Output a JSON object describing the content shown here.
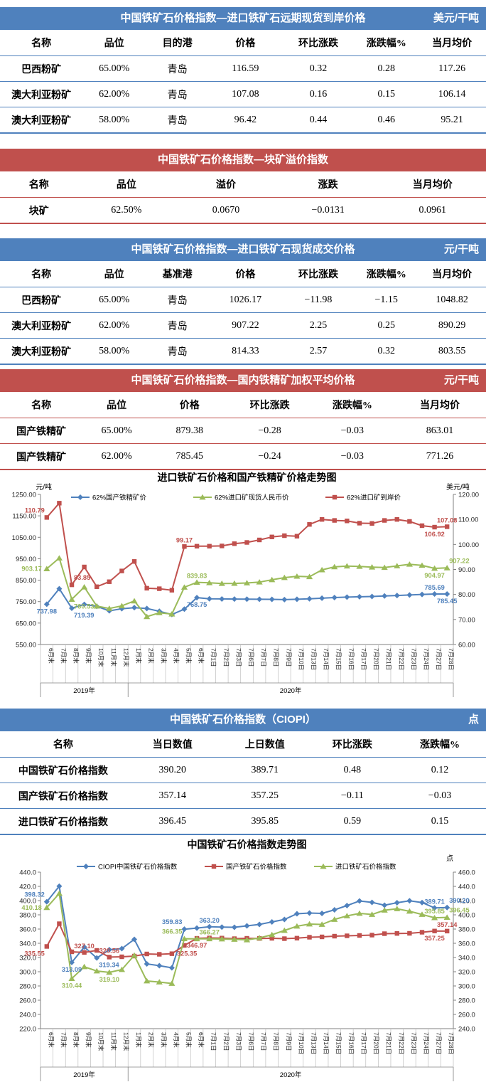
{
  "tables": {
    "t1": {
      "title": "中国铁矿石价格指数—进口铁矿石远期现货到岸价格",
      "unit": "美元/干吨",
      "columns": [
        "名称",
        "品位",
        "目的港",
        "价格",
        "环比涨跌",
        "涨跌幅%",
        "当月均价"
      ],
      "rows": [
        [
          "巴西粉矿",
          "65.00%",
          "青岛",
          "116.59",
          "0.32",
          "0.28",
          "117.26"
        ],
        [
          "澳大利亚粉矿",
          "62.00%",
          "青岛",
          "107.08",
          "0.16",
          "0.15",
          "106.14"
        ],
        [
          "澳大利亚粉矿",
          "58.00%",
          "青岛",
          "96.42",
          "0.44",
          "0.46",
          "95.21"
        ]
      ]
    },
    "t2": {
      "title": "中国铁矿石价格指数—块矿溢价指数",
      "unit": "",
      "columns": [
        "名称",
        "品位",
        "溢价",
        "涨跌",
        "当月均价"
      ],
      "rows": [
        [
          "块矿",
          "62.50%",
          "0.0670",
          "−0.0131",
          "0.0961"
        ]
      ]
    },
    "t3": {
      "title": "中国铁矿石价格指数—进口铁矿石现货成交价格",
      "unit": "元/干吨",
      "columns": [
        "名称",
        "品位",
        "基准港",
        "价格",
        "环比涨跌",
        "涨跌幅%",
        "当月均价"
      ],
      "rows": [
        [
          "巴西粉矿",
          "65.00%",
          "青岛",
          "1026.17",
          "−11.98",
          "−1.15",
          "1048.82"
        ],
        [
          "澳大利亚粉矿",
          "62.00%",
          "青岛",
          "907.22",
          "2.25",
          "0.25",
          "890.29"
        ],
        [
          "澳大利亚粉矿",
          "58.00%",
          "青岛",
          "814.33",
          "2.57",
          "0.32",
          "803.55"
        ]
      ]
    },
    "t4": {
      "title": "中国铁矿石价格指数—国内铁精矿加权平均价格",
      "unit": "元/干吨",
      "columns": [
        "名称",
        "品位",
        "价格",
        "环比涨跌",
        "涨跌幅%",
        "当月均价"
      ],
      "rows": [
        [
          "国产铁精矿",
          "65.00%",
          "879.38",
          "−0.28",
          "−0.03",
          "863.01"
        ],
        [
          "国产铁精矿",
          "62.00%",
          "785.45",
          "−0.24",
          "−0.03",
          "771.26"
        ]
      ]
    },
    "t5": {
      "title": "中国铁矿石价格指数（CIOPI）",
      "unit": "点",
      "columns": [
        "名称",
        "当日数值",
        "上日数值",
        "环比涨跌",
        "涨跌幅%"
      ],
      "rows": [
        [
          "中国铁矿石价格指数",
          "390.20",
          "389.71",
          "0.48",
          "0.12"
        ],
        [
          "国产铁矿石价格指数",
          "357.14",
          "357.25",
          "−0.11",
          "−0.03"
        ],
        [
          "进口铁矿石价格指数",
          "396.45",
          "395.85",
          "0.59",
          "0.15"
        ]
      ]
    }
  },
  "chart_data": [
    {
      "type": "line",
      "title": "进口铁矿石价格和国产铁精矿价格走势图",
      "left_axis": {
        "label": "元/吨",
        "min": 550,
        "max": 1250,
        "step": 100,
        "decimals": 2
      },
      "right_axis": {
        "label": "美元/吨",
        "min": 60,
        "max": 120,
        "step": 10,
        "decimals": 2
      },
      "categories": [
        "6月末",
        "7月末",
        "8月末",
        "9月末",
        "10月末",
        "11月末",
        "12月末",
        "1月末",
        "2月末",
        "3月末",
        "4月末",
        "5月末",
        "6月末",
        "7月1日",
        "7月2日",
        "7月3日",
        "7月6日",
        "7月7日",
        "7月8日",
        "7月9日",
        "7月10日",
        "7月13日",
        "7月14日",
        "7月15日",
        "7月16日",
        "7月17日",
        "7月20日",
        "7月21日",
        "7月22日",
        "7月23日",
        "7月24日",
        "7月27日",
        "7月28日"
      ],
      "year_groups": [
        {
          "label": "2019年",
          "span": 7
        },
        {
          "label": "2020年",
          "span": 26
        }
      ],
      "legend_position": "top",
      "grid": false,
      "series": [
        {
          "name": "62%国产铁精矿价",
          "color": "#4f81bd",
          "marker": "diamond",
          "axis": "left",
          "values": [
            737.98,
            810,
            719.39,
            737,
            728,
            707,
            717,
            722,
            718,
            705,
            690,
            715,
            768.75,
            763,
            762.5,
            762,
            761.5,
            761,
            760.5,
            759.5,
            761,
            763,
            766,
            769,
            771,
            772.5,
            774,
            776.5,
            778.5,
            781,
            783.5,
            785.69,
            785.45
          ]
        },
        {
          "name": "62%进口矿现货人民币价",
          "color": "#9bbb59",
          "marker": "triangle",
          "axis": "left",
          "values": [
            903.17,
            953,
            760.53,
            818,
            729,
            718,
            730,
            753,
            680,
            698,
            692,
            817,
            839.83,
            838,
            834.5,
            835,
            837,
            841,
            852,
            862,
            868,
            866,
            898,
            912,
            916,
            914,
            911,
            909,
            916.5,
            924,
            919,
            904.97,
            907.22
          ]
        },
        {
          "name": "62%进口矿到岸价",
          "color": "#c0504d",
          "marker": "square",
          "axis": "right",
          "values": [
            110.79,
            116.5,
            83.85,
            91,
            83.1,
            85.1,
            89.4,
            93.2,
            82.5,
            82.3,
            81.7,
            99.17,
            99.3,
            99.3,
            99.4,
            100.3,
            100.8,
            101.8,
            103,
            103.5,
            103.3,
            108,
            110,
            109.6,
            109.4,
            108.5,
            108.4,
            109.6,
            110,
            109.2,
            107.5,
            106.92,
            107.08
          ]
        }
      ],
      "annotations": [
        {
          "series": 0,
          "index": 0,
          "text": "737.98",
          "placement": "b"
        },
        {
          "series": 0,
          "index": 2,
          "text": "719.39",
          "placement": "br"
        },
        {
          "series": 0,
          "index": 12,
          "text": "768.75",
          "placement": "b"
        },
        {
          "series": 0,
          "index": 31,
          "text": "785.69",
          "placement": "a"
        },
        {
          "series": 0,
          "index": 32,
          "text": "785.45",
          "placement": "b"
        },
        {
          "series": 1,
          "index": 0,
          "text": "903.17",
          "placement": "l"
        },
        {
          "series": 1,
          "index": 2,
          "text": "760.53",
          "placement": "br"
        },
        {
          "series": 1,
          "index": 12,
          "text": "839.83",
          "placement": "a"
        },
        {
          "series": 1,
          "index": 31,
          "text": "904.97",
          "placement": "b"
        },
        {
          "series": 1,
          "index": 32,
          "text": "907.22",
          "placement": "ar"
        },
        {
          "series": 2,
          "index": 0,
          "text": "110.79",
          "placement": "al"
        },
        {
          "series": 2,
          "index": 2,
          "text": "83.85",
          "placement": "ar"
        },
        {
          "series": 2,
          "index": 11,
          "text": "99.17",
          "placement": "a"
        },
        {
          "series": 2,
          "index": 31,
          "text": "106.92",
          "placement": "b"
        },
        {
          "series": 2,
          "index": 32,
          "text": "107.08",
          "placement": "a"
        }
      ]
    },
    {
      "type": "line",
      "title": "中国铁矿石价格指数走势图",
      "left_axis": {
        "label": "",
        "min": 220,
        "max": 440,
        "step": 20,
        "decimals": 1
      },
      "right_axis": {
        "label": "点",
        "min": 240,
        "max": 460,
        "step": 20,
        "decimals": 1
      },
      "categories": [
        "6月末",
        "7月末",
        "8月末",
        "9月末",
        "10月末",
        "11月末",
        "12月末",
        "1月末",
        "2月末",
        "3月末",
        "4月末",
        "5月末",
        "6月末",
        "7月1日",
        "7月2日",
        "7月3日",
        "7月6日",
        "7月7日",
        "7月8日",
        "7月9日",
        "7月10日",
        "7月13日",
        "7月14日",
        "7月15日",
        "7月16日",
        "7月17日",
        "7月20日",
        "7月21日",
        "7月22日",
        "7月23日",
        "7月24日",
        "7月27日",
        "7月28日"
      ],
      "year_groups": [
        {
          "label": "2019年",
          "span": 7
        },
        {
          "label": "2020年",
          "span": 26
        }
      ],
      "legend_position": "top",
      "grid": false,
      "series": [
        {
          "name": "CIOPI中国铁矿石价格指数",
          "color": "#4f81bd",
          "marker": "diamond",
          "axis": "left",
          "values": [
            398.32,
            420.23,
            313.09,
            334.8,
            319.34,
            331,
            332.5,
            345.5,
            311,
            308.5,
            305.5,
            359.83,
            361.4,
            363.2,
            362.8,
            362.5,
            364.5,
            366.5,
            370,
            373.5,
            381.5,
            382.5,
            382,
            387,
            393,
            399.5,
            397.5,
            393.5,
            397,
            399.8,
            397.3,
            389.71,
            390.2
          ]
        },
        {
          "name": "国产铁矿石价格指数",
          "color": "#c0504d",
          "marker": "square",
          "axis": "left",
          "values": [
            335.55,
            367.5,
            328,
            327.1,
            330,
            320.56,
            321,
            322,
            325,
            324.5,
            325.35,
            337,
            346.97,
            347.5,
            347.3,
            346.5,
            347,
            346.8,
            347,
            346.5,
            347.2,
            348.5,
            349,
            350,
            350.5,
            351,
            351.5,
            353.5,
            353.8,
            354,
            355.5,
            357.25,
            357.14
          ]
        },
        {
          "name": "进口铁矿石价格指数",
          "color": "#9bbb59",
          "marker": "triangle",
          "axis": "right",
          "values": [
            410.18,
            430,
            310.44,
            327,
            321,
            319.1,
            323,
            343,
            307,
            305.5,
            303.5,
            366.35,
            366.3,
            366.27,
            366,
            365.5,
            364.8,
            367.5,
            372,
            378,
            384,
            387,
            386.5,
            393.5,
            398.5,
            402,
            400.5,
            406.5,
            408.5,
            405,
            400.5,
            395.85,
            396.45
          ]
        }
      ],
      "annotations": [
        {
          "series": 0,
          "index": 0,
          "text": "398.32",
          "placement": "al"
        },
        {
          "series": 0,
          "index": 2,
          "text": "313.09",
          "placement": "b"
        },
        {
          "series": 0,
          "index": 4,
          "text": "319.34",
          "placement": "br"
        },
        {
          "series": 0,
          "index": 11,
          "text": "359.83",
          "placement": "al"
        },
        {
          "series": 0,
          "index": 13,
          "text": "363.20",
          "placement": "a"
        },
        {
          "series": 0,
          "index": 31,
          "text": "389.71",
          "placement": "a"
        },
        {
          "series": 0,
          "index": 32,
          "text": "390.20",
          "placement": "ar"
        },
        {
          "series": 1,
          "index": 0,
          "text": "335.55",
          "placement": "bl"
        },
        {
          "series": 1,
          "index": 3,
          "text": "327.10",
          "placement": "a"
        },
        {
          "series": 1,
          "index": 5,
          "text": "320.56",
          "placement": "a"
        },
        {
          "series": 1,
          "index": 10,
          "text": "325.35",
          "placement": "r"
        },
        {
          "series": 1,
          "index": 12,
          "text": "346.97",
          "placement": "b"
        },
        {
          "series": 1,
          "index": 31,
          "text": "357.25",
          "placement": "b"
        },
        {
          "series": 1,
          "index": 32,
          "text": "357.14",
          "placement": "a"
        },
        {
          "series": 2,
          "index": 0,
          "text": "410.18",
          "placement": "l"
        },
        {
          "series": 2,
          "index": 2,
          "text": "310.44",
          "placement": "b"
        },
        {
          "series": 2,
          "index": 5,
          "text": "319.10",
          "placement": "b"
        },
        {
          "series": 2,
          "index": 11,
          "text": "366.35",
          "placement": "al"
        },
        {
          "series": 2,
          "index": 13,
          "text": "366.27",
          "placement": "a"
        },
        {
          "series": 2,
          "index": 31,
          "text": "395.85",
          "placement": "a"
        },
        {
          "series": 2,
          "index": 32,
          "text": "396.45",
          "placement": "ar"
        }
      ]
    }
  ],
  "colors": {
    "accent_blue": "#4f81bd",
    "accent_red": "#c0504d",
    "accent_green": "#9bbb59"
  }
}
